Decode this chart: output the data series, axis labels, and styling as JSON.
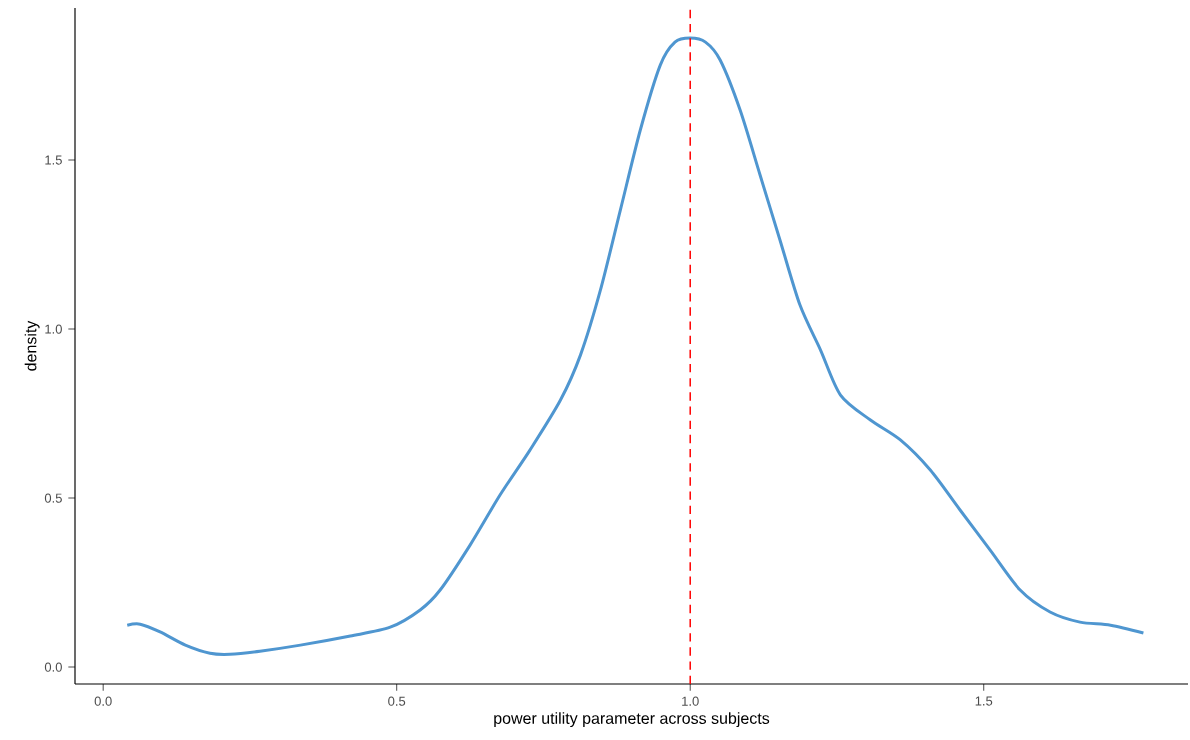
{
  "chart_data": {
    "type": "line",
    "xlabel": "power utility parameter across subjects",
    "ylabel": "density",
    "x": [
      0.041,
      0.063,
      0.097,
      0.14,
      0.182,
      0.216,
      0.267,
      0.336,
      0.421,
      0.489,
      0.54,
      0.574,
      0.625,
      0.676,
      0.727,
      0.779,
      0.813,
      0.847,
      0.881,
      0.915,
      0.949,
      0.974,
      1.0,
      1.026,
      1.051,
      1.085,
      1.119,
      1.153,
      1.187,
      1.222,
      1.256,
      1.307,
      1.358,
      1.409,
      1.46,
      1.511,
      1.562,
      1.613,
      1.664,
      1.716,
      1.772
    ],
    "values": [
      0.124,
      0.127,
      0.104,
      0.065,
      0.041,
      0.038,
      0.047,
      0.065,
      0.092,
      0.118,
      0.169,
      0.228,
      0.361,
      0.509,
      0.642,
      0.79,
      0.923,
      1.115,
      1.352,
      1.589,
      1.781,
      1.849,
      1.861,
      1.849,
      1.796,
      1.648,
      1.456,
      1.263,
      1.071,
      0.938,
      0.805,
      0.731,
      0.672,
      0.583,
      0.464,
      0.346,
      0.228,
      0.163,
      0.133,
      0.124,
      0.101
    ],
    "color": "#4f96d0",
    "xlim": [
      -0.048,
      1.848
    ],
    "ylim": [
      -0.05,
      1.95
    ],
    "xticks": [
      {
        "value": 0,
        "label": "0.0"
      },
      0.5,
      {
        "value": 1,
        "label": "1.0"
      },
      1.5
    ],
    "yticks": [
      {
        "value": 0,
        "label": "0.0"
      },
      0.5,
      {
        "value": 1,
        "label": "1.0"
      },
      1.5
    ],
    "ref_lines": [
      {
        "axis": "x",
        "value": 1.0,
        "color": "#ff0000",
        "line_style": "dashed"
      }
    ]
  }
}
